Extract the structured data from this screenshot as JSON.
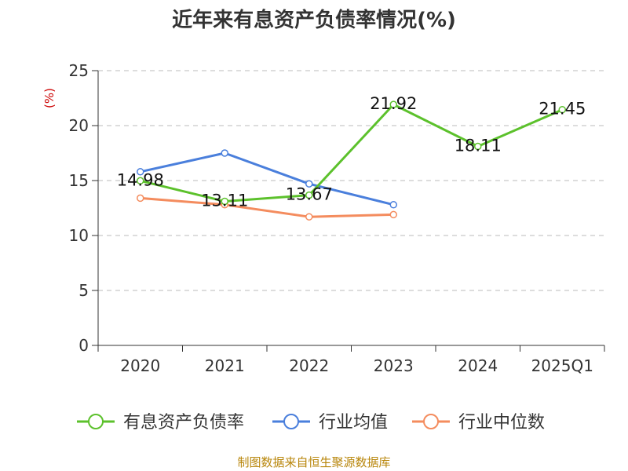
{
  "chart_data": {
    "type": "line",
    "title": "近年来有息资产负债率情况(%)",
    "ylabel": "(%)",
    "categories": [
      "2020",
      "2021",
      "2022",
      "2023",
      "2024",
      "2025Q1"
    ],
    "ylim": [
      0,
      25
    ],
    "yticks": [
      0,
      5,
      10,
      15,
      20,
      25
    ],
    "grid": true,
    "legend_position": "bottom",
    "series": [
      {
        "name": "有息资产负债率",
        "color": "#5cc12c",
        "values": [
          14.98,
          13.11,
          13.67,
          21.92,
          18.11,
          21.45
        ],
        "labels": [
          "14.98",
          "13.11",
          "13.67",
          "21.92",
          "18.11",
          "21.45"
        ]
      },
      {
        "name": "行业均值",
        "color": "#4a7fdc",
        "values": [
          15.8,
          17.5,
          14.7,
          12.8,
          null,
          null
        ]
      },
      {
        "name": "行业中位数",
        "color": "#f48c5e",
        "values": [
          13.4,
          12.8,
          11.7,
          11.9,
          null,
          null
        ]
      }
    ]
  },
  "footer": {
    "source": "制图数据来自恒生聚源数据库"
  }
}
